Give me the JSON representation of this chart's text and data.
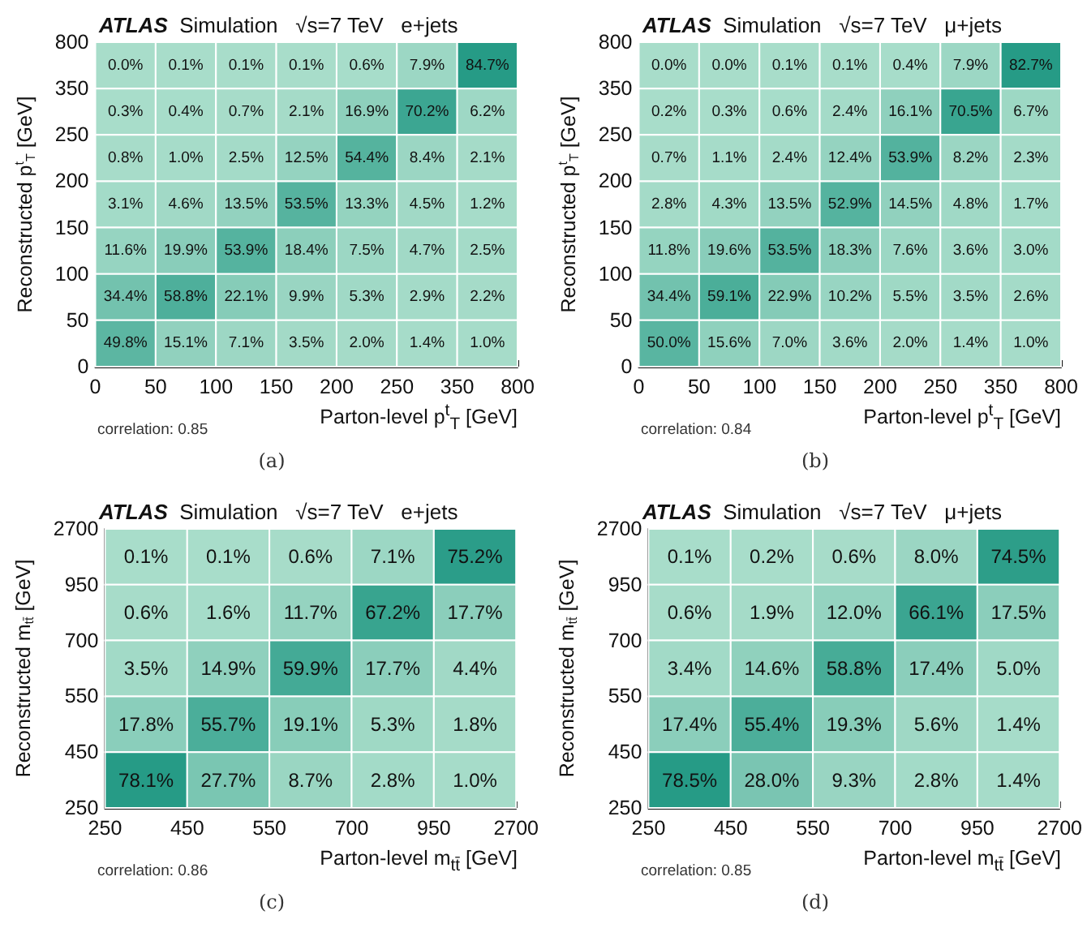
{
  "chart_data": [
    {
      "type": "heatmap",
      "title": "ATLAS",
      "subtitle": "Simulation   √s=7 TeV   e+jets",
      "xlabel": "Parton-level p$^{t}$$_{T}$ [GeV]",
      "ylabel": "Reconstructed p$^{t}$$_{T}$ [GeV]",
      "annotations": [
        "correlation: 0.85",
        "(a)",
        "0",
        "50",
        "100",
        "150",
        "200",
        "250",
        "350",
        "800",
        "0",
        "50",
        "100",
        "150",
        "200",
        "250",
        "350",
        "800"
      ],
      "categories": [
        null,
        null,
        null,
        null,
        null,
        null,
        null
      ],
      "y_categories": [
        null,
        null,
        null,
        null,
        null,
        null,
        null
      ],
      "cells": [
        [
          0.0,
          0.1,
          0.1,
          0.1,
          0.6,
          7.9,
          84.7
        ],
        [
          0.3,
          0.4,
          0.7,
          2.1,
          16.9,
          70.2,
          6.2
        ],
        [
          0.8,
          1.0,
          2.5,
          12.5,
          54.4,
          8.4,
          2.1
        ],
        [
          3.1,
          4.6,
          13.5,
          53.5,
          13.3,
          4.5,
          1.2
        ],
        [
          11.6,
          19.9,
          53.9,
          18.4,
          7.5,
          4.7,
          2.5
        ],
        [
          34.4,
          58.8,
          22.1,
          9.9,
          5.3,
          2.9,
          2.2
        ],
        [
          49.8,
          15.1,
          7.1,
          3.5,
          2.0,
          1.4,
          1.0
        ]
      ],
      "cell_labels": [
        [
          "0.0%",
          "0.1%",
          "0.1%",
          "0.1%",
          "0.6%",
          "7.9%",
          "84.7%"
        ],
        [
          "0.3%",
          "0.4%",
          "0.7%",
          "2.1%",
          "16.9%",
          "70.2%",
          "6.2%"
        ],
        [
          "0.8%",
          "1.0%",
          "2.5%",
          "12.5%",
          "54.4%",
          "8.4%",
          "2.1%"
        ],
        [
          "3.1%",
          "4.6%",
          "13.5%",
          "53.5%",
          "13.3%",
          "4.5%",
          "1.2%"
        ],
        [
          "11.6%",
          "19.9%",
          "53.9%",
          "18.4%",
          "7.5%",
          "4.7%",
          "2.5%"
        ],
        [
          "34.4%",
          "58.8%",
          "22.1%",
          "9.9%",
          "5.3%",
          "2.9%",
          "2.2%"
        ],
        [
          "49.8%",
          "15.1%",
          "7.1%",
          "3.5%",
          "2.0%",
          "1.4%",
          "1.0%"
        ]
      ]
    },
    {
      "type": "heatmap",
      "title": "ATLAS",
      "subtitle": "Simulation   √s=7 TeV   μ+jets",
      "xlabel": "Parton-level p$^{t}$$_{T}$ [GeV]",
      "ylabel": "Reconstructed p$^{t}$$_{T}$ [GeV]",
      "annotations": [
        "correlation: 0.84",
        "(b)",
        "0",
        "50",
        "100",
        "150",
        "200",
        "250",
        "350",
        "800",
        "0",
        "50",
        "100",
        "150",
        "200",
        "250",
        "350",
        "800"
      ],
      "categories": [
        null,
        null,
        null,
        null,
        null,
        null,
        null
      ],
      "y_categories": [
        null,
        null,
        null,
        null,
        null,
        null,
        null
      ],
      "cells": [
        [
          0.0,
          0.0,
          0.1,
          0.1,
          0.4,
          7.9,
          82.7
        ],
        [
          0.2,
          0.3,
          0.6,
          2.4,
          16.1,
          70.5,
          6.7
        ],
        [
          0.7,
          1.1,
          2.4,
          12.4,
          53.9,
          8.2,
          2.3
        ],
        [
          2.8,
          4.3,
          13.5,
          52.9,
          14.5,
          4.8,
          1.7
        ],
        [
          11.8,
          19.6,
          53.5,
          18.3,
          7.6,
          3.6,
          3.0
        ],
        [
          34.4,
          59.1,
          22.9,
          10.2,
          5.5,
          3.5,
          2.6
        ],
        [
          50.0,
          15.6,
          7.0,
          3.6,
          2.0,
          1.4,
          1.0
        ]
      ],
      "cell_labels": [
        [
          "0.0%",
          "0.0%",
          "0.1%",
          "0.1%",
          "0.4%",
          "7.9%",
          "82.7%"
        ],
        [
          "0.2%",
          "0.3%",
          "0.6%",
          "2.4%",
          "16.1%",
          "70.5%",
          "6.7%"
        ],
        [
          "0.7%",
          "1.1%",
          "2.4%",
          "12.4%",
          "53.9%",
          "8.2%",
          "2.3%"
        ],
        [
          "2.8%",
          "4.3%",
          "13.5%",
          "52.9%",
          "14.5%",
          "4.8%",
          "1.7%"
        ],
        [
          "11.8%",
          "19.6%",
          "53.5%",
          "18.3%",
          "7.6%",
          "3.6%",
          "3.0%"
        ],
        [
          "34.4%",
          "59.1%",
          "22.9%",
          "10.2%",
          "5.5%",
          "3.5%",
          "2.6%"
        ],
        [
          "50.0%",
          "15.6%",
          "7.0%",
          "3.6%",
          "2.0%",
          "1.4%",
          "1.0%"
        ]
      ]
    },
    {
      "type": "heatmap",
      "title": "ATLAS",
      "subtitle": "Simulation   √s=7 TeV   e+jets",
      "xlabel": "Parton-level m$_{tt̄}$ [GeV]",
      "ylabel": "Reconstructed m$_{tt̄}$ [GeV]",
      "annotations": [
        "correlation: 0.86",
        "(c)",
        "250",
        "450",
        "550",
        "700",
        "950",
        "2700",
        "250",
        "450",
        "550",
        "700",
        "950",
        "2700"
      ],
      "categories": [
        null,
        null,
        null,
        null,
        null
      ],
      "y_categories": [
        null,
        null,
        null,
        null,
        null
      ],
      "cells": [
        [
          0.1,
          0.1,
          0.6,
          7.1,
          75.2
        ],
        [
          0.6,
          1.6,
          11.7,
          67.2,
          17.7
        ],
        [
          3.5,
          14.9,
          59.9,
          17.7,
          4.4
        ],
        [
          17.8,
          55.7,
          19.1,
          5.3,
          1.8
        ],
        [
          78.1,
          27.7,
          8.7,
          2.8,
          1.0
        ]
      ],
      "cell_labels": [
        [
          "0.1%",
          "0.1%",
          "0.6%",
          "7.1%",
          "75.2%"
        ],
        [
          "0.6%",
          "1.6%",
          "11.7%",
          "67.2%",
          "17.7%"
        ],
        [
          "3.5%",
          "14.9%",
          "59.9%",
          "17.7%",
          "4.4%"
        ],
        [
          "17.8%",
          "55.7%",
          "19.1%",
          "5.3%",
          "1.8%"
        ],
        [
          "78.1%",
          "27.7%",
          "8.7%",
          "2.8%",
          "1.0%"
        ]
      ]
    },
    {
      "type": "heatmap",
      "title": "ATLAS",
      "subtitle": "Simulation   √s=7 TeV   μ+jets",
      "xlabel": "Parton-level m$_{tt̄}$ [GeV]",
      "ylabel": "Reconstructed m$_{tt̄}$ [GeV]",
      "annotations": [
        "correlation: 0.85",
        "(d)",
        "250",
        "450",
        "550",
        "700",
        "950",
        "2700",
        "250",
        "450",
        "550",
        "700",
        "950",
        "2700"
      ],
      "categories": [
        null,
        null,
        null,
        null,
        null
      ],
      "y_categories": [
        null,
        null,
        null,
        null,
        null
      ],
      "cells": [
        [
          0.1,
          0.2,
          0.6,
          8.0,
          74.5
        ],
        [
          0.6,
          1.9,
          12.0,
          66.1,
          17.5
        ],
        [
          3.4,
          14.6,
          58.8,
          17.4,
          5.0
        ],
        [
          17.4,
          55.4,
          19.3,
          5.6,
          1.4
        ],
        [
          78.5,
          28.0,
          9.3,
          2.8,
          1.4
        ]
      ],
      "cell_labels": [
        [
          "0.1%",
          "0.2%",
          "0.6%",
          "8.0%",
          "74.5%"
        ],
        [
          "0.6%",
          "1.9%",
          "12.0%",
          "66.1%",
          "17.5%"
        ],
        [
          "3.4%",
          "14.6%",
          "58.8%",
          "17.4%",
          "5.0%"
        ],
        [
          "17.4%",
          "55.4%",
          "19.3%",
          "5.6%",
          "1.4%"
        ],
        [
          "78.5%",
          "28.0%",
          "9.3%",
          "2.8%",
          "1.4%"
        ]
      ]
    }
  ]
}
